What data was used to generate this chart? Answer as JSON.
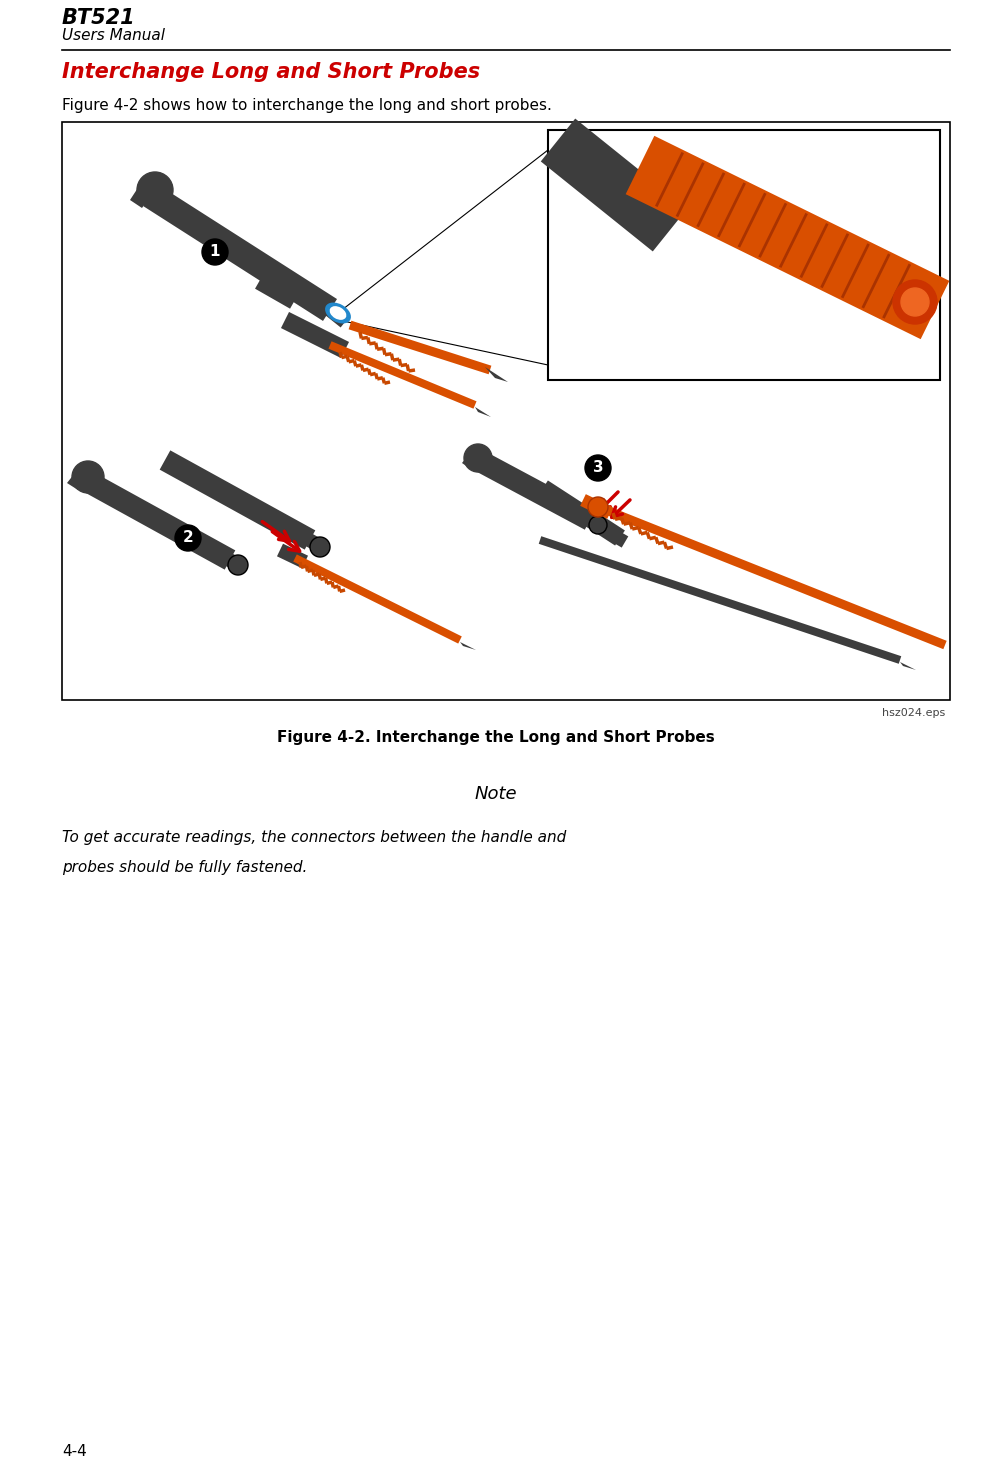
{
  "page_title": "BT521",
  "page_subtitle": "Users Manual",
  "page_number": "4-4",
  "section_title": "Interchange Long and Short Probes",
  "intro_text": "Figure 4-2 shows how to interchange the long and short probes.",
  "figure_caption": "Figure 4-2. Interchange the Long and Short Probes",
  "figure_filename": "hsz024.eps",
  "note_title": "Note",
  "note_text_line1": "To get accurate readings, the connectors between the handle and",
  "note_text_line2": "probes should be fully fastened.",
  "background_color": "#ffffff",
  "title_color": "#000000",
  "section_title_color": "#cc0000",
  "dark_gray": "#3d3d3d",
  "medium_gray": "#666666",
  "orange": "#d94f00",
  "spring_orange": "#c84800",
  "blue": "#2288cc",
  "red_arrow": "#cc0000",
  "white": "#ffffff",
  "black": "#000000",
  "page_width": 9.91,
  "page_height": 14.62,
  "dpi": 100
}
